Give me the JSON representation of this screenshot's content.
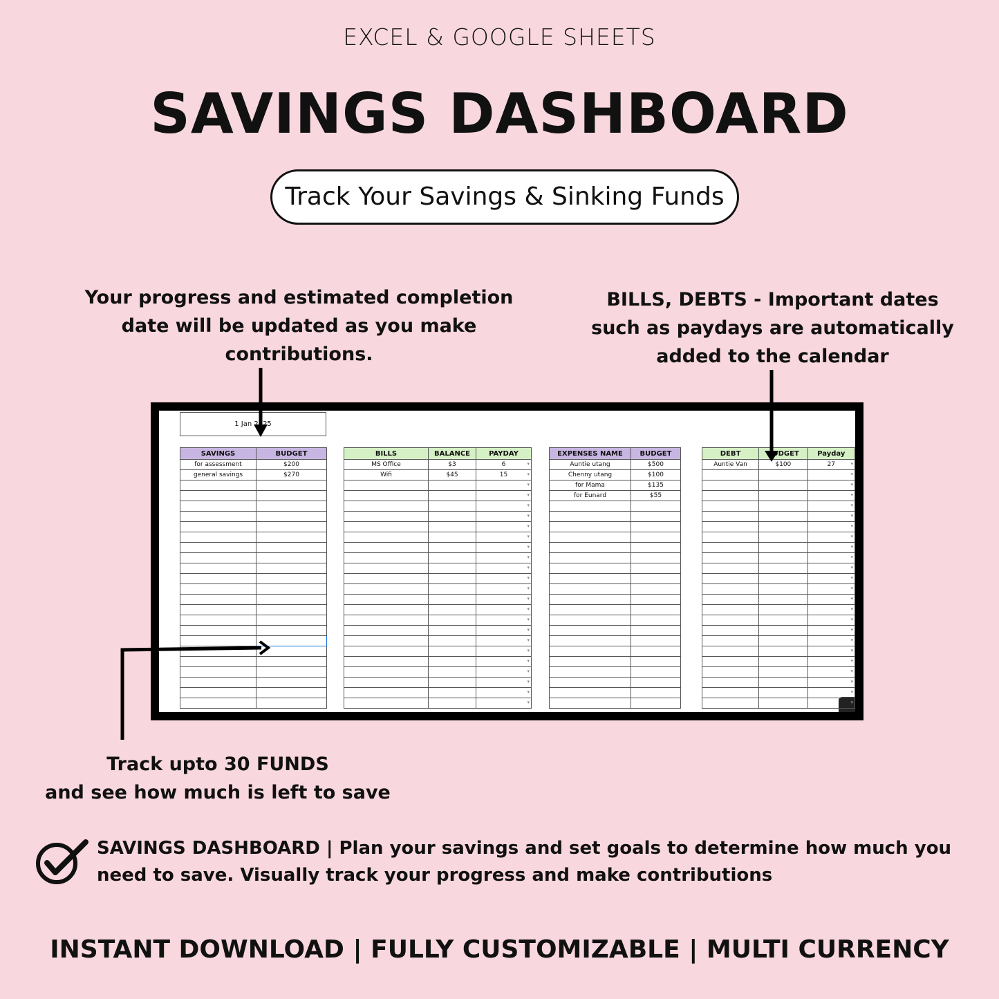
{
  "header": {
    "subtitle": "EXCEL  & GOOGLE SHEETS",
    "title": "SAVINGS DASHBOARD",
    "tagline": "Track Your Savings & Sinking Funds"
  },
  "notes": {
    "progress": "Your progress and estimated completion date will be updated as you make contributions.",
    "bills": "BILLS, DEBTS - Important dates such as paydays are automatically added to the calendar",
    "funds_line1": "Track upto 30 FUNDS",
    "funds_line2": "and see how much is left to save"
  },
  "sheet": {
    "date": "1 Jan 2025",
    "tables": [
      {
        "id": "savings",
        "theme": "purple",
        "headers": [
          "SAVINGS",
          "BUDGET"
        ],
        "rows": [
          [
            "for assessment",
            "$200"
          ],
          [
            "general savings",
            "$270"
          ]
        ],
        "dropdown": false
      },
      {
        "id": "bills",
        "theme": "green",
        "headers": [
          "BILLS",
          "BALANCE",
          "PAYDAY"
        ],
        "rows": [
          [
            "MS Office",
            "$3",
            "6"
          ],
          [
            "Wifi",
            "$45",
            "15"
          ]
        ],
        "dropdown": true
      },
      {
        "id": "expenses",
        "theme": "purple",
        "headers": [
          "EXPENSES NAME",
          "BUDGET"
        ],
        "rows": [
          [
            "Auntie utang",
            "$500"
          ],
          [
            "Chenny utang",
            "$100"
          ],
          [
            "for Mama",
            "$135"
          ],
          [
            "for Eunard",
            "$55"
          ]
        ],
        "dropdown": false
      },
      {
        "id": "debt",
        "theme": "green",
        "headers": [
          "DEBT",
          "BUDGET",
          "Payday"
        ],
        "rows": [
          [
            "Auntie Van",
            "$100",
            "27"
          ]
        ],
        "dropdown": true
      }
    ]
  },
  "description": "SAVINGS DASHBOARD | Plan your savings and set goals to determine how much you need to save. Visually track your progress and make contributions",
  "footer": "INSTANT DOWNLOAD |  FULLY CUSTOMIZABLE |  MULTI CURRENCY",
  "colors": {
    "background": "#f8d7de",
    "purple_header": "#c8b6e2",
    "green_header": "#d5f0c4"
  }
}
